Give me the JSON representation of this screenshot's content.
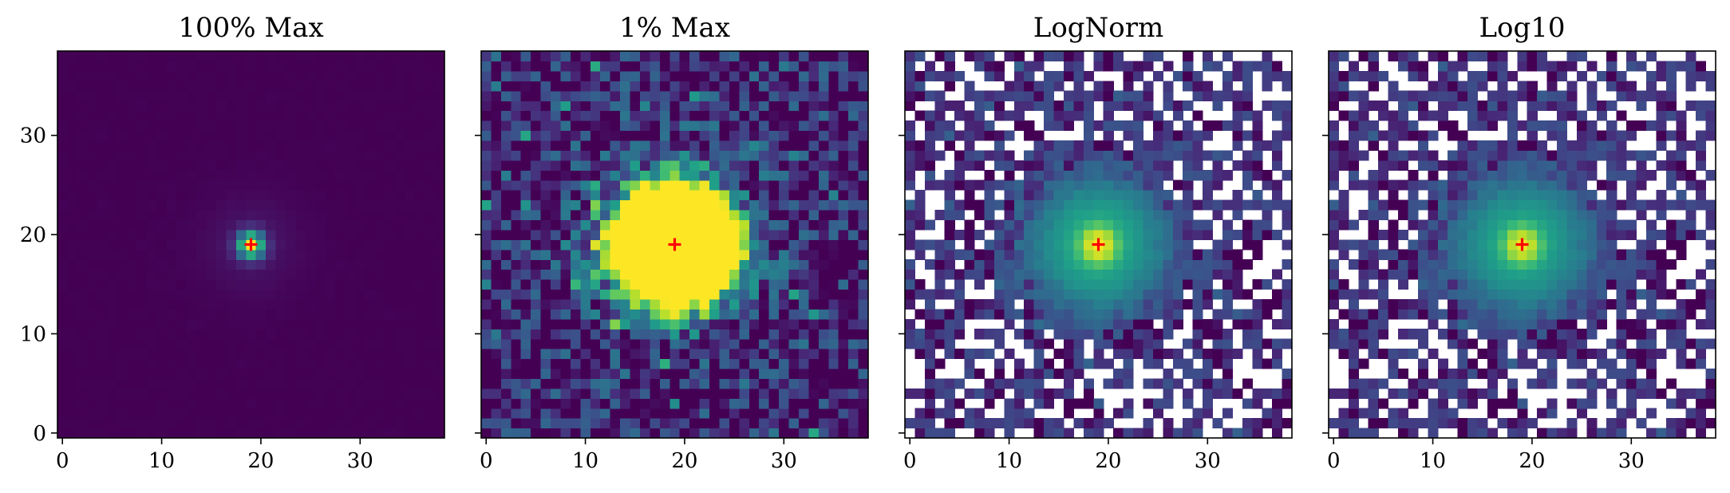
{
  "chart_data": [
    {
      "type": "heatmap",
      "title": "100% Max",
      "norm": "linear-100",
      "xlim": [
        -0.5,
        38.5
      ],
      "ylim": [
        -0.5,
        38.5
      ],
      "xticks": [
        0,
        10,
        20,
        30
      ],
      "yticks": [
        0,
        10,
        20,
        30
      ],
      "show_yticklabels": true,
      "marker": {
        "x": 19,
        "y": 19,
        "color": "#ff0000",
        "symbol": "+"
      },
      "colormap": "viridis",
      "grid": false
    },
    {
      "type": "heatmap",
      "title": "1% Max",
      "norm": "linear-1",
      "xlim": [
        -0.5,
        38.5
      ],
      "ylim": [
        -0.5,
        38.5
      ],
      "xticks": [
        0,
        10,
        20,
        30
      ],
      "yticks": [
        0,
        10,
        20,
        30
      ],
      "show_yticklabels": false,
      "marker": {
        "x": 19,
        "y": 19,
        "color": "#ff0000",
        "symbol": "+"
      },
      "colormap": "viridis",
      "grid": false
    },
    {
      "type": "heatmap",
      "title": "LogNorm",
      "norm": "log",
      "xlim": [
        -0.5,
        38.5
      ],
      "ylim": [
        -0.5,
        38.5
      ],
      "xticks": [
        0,
        10,
        20,
        30
      ],
      "yticks": [
        0,
        10,
        20,
        30
      ],
      "show_yticklabels": false,
      "marker": {
        "x": 19,
        "y": 19,
        "color": "#ff0000",
        "symbol": "+"
      },
      "colormap": "viridis",
      "grid": false
    },
    {
      "type": "heatmap",
      "title": "Log10",
      "norm": "log10",
      "xlim": [
        -0.5,
        38.5
      ],
      "ylim": [
        -0.5,
        38.5
      ],
      "xticks": [
        0,
        10,
        20,
        30
      ],
      "yticks": [
        0,
        10,
        20,
        30
      ],
      "show_yticklabels": false,
      "marker": {
        "x": 19,
        "y": 19,
        "color": "#ff0000",
        "symbol": "+"
      },
      "colormap": "viridis",
      "grid": false
    }
  ]
}
